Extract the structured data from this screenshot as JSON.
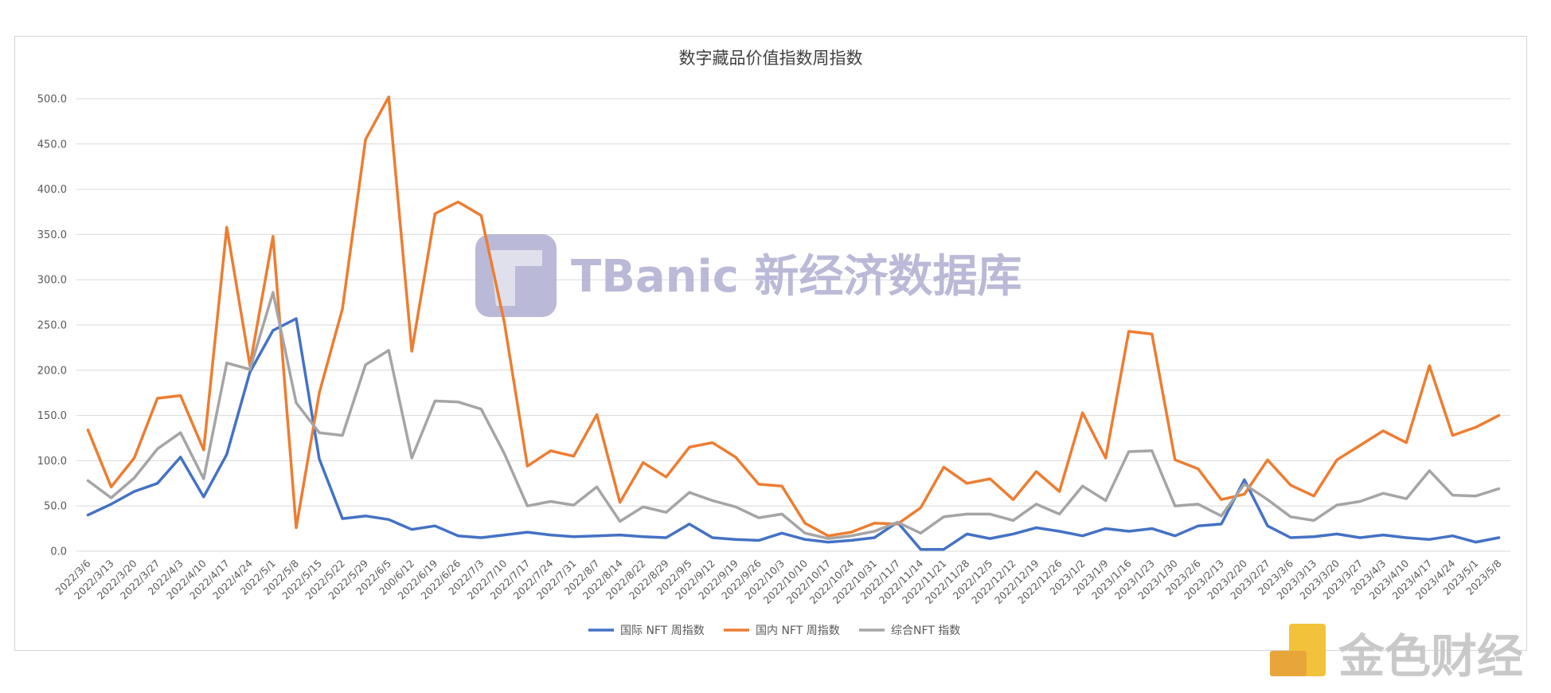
{
  "chart_data": {
    "type": "line",
    "title": "数字藏品价值指数周指数",
    "ylim": [
      0,
      500
    ],
    "yticks": [
      "0.0",
      "50.0",
      "100.0",
      "150.0",
      "200.0",
      "250.0",
      "300.0",
      "350.0",
      "400.0",
      "450.0",
      "500.0"
    ],
    "grid": true,
    "legend_position": "bottom",
    "categories": [
      "2022/3/6",
      "2022/3/13",
      "2022/3/20",
      "2022/3/27",
      "2022/4/3",
      "2022/4/10",
      "2022/4/17",
      "2022/4/24",
      "2022/5/1",
      "2022/5/8",
      "2022/5/15",
      "2022/5/22",
      "2022/5/29",
      "2022/6/5",
      "200/6/12",
      "2022/6/19",
      "2022/6/26",
      "2022/7/3",
      "2022/7/10",
      "2022/7/17",
      "2022/7/24",
      "2022/7/31",
      "2022/8/7",
      "2022/8/14",
      "2022/8/22",
      "2022/8/29",
      "2022/9/5",
      "2022/9/12",
      "2022/9/19",
      "2022/9/26",
      "2022/10/3",
      "2022/10/10",
      "2022/10/17",
      "2022/10/24",
      "2022/10/31",
      "2022/11/7",
      "2022/11/14",
      "2022/11/21",
      "2022/11/28",
      "2022/12/5",
      "2022/12/12",
      "2022/12/19",
      "2022/12/26",
      "2023/1/2",
      "2023/1/9",
      "2023/1/16",
      "2023/1/23",
      "2023/1/30",
      "2023/2/6",
      "2023/2/13",
      "2023/2/20",
      "2023/2/27",
      "2023/3/6",
      "2023/3/13",
      "2023/3/20",
      "2023/3/27",
      "2023/4/3",
      "2023/4/10",
      "2023/4/17",
      "2023/4/24",
      "2023/5/1",
      "2023/5/8"
    ],
    "series": [
      {
        "name": "国际 NFT 周指数",
        "color": "#4472c4",
        "values": [
          40,
          52,
          66,
          75,
          104,
          60,
          107,
          198,
          244,
          257,
          102,
          36,
          39,
          35,
          24,
          28,
          17,
          15,
          18,
          21,
          18,
          16,
          17,
          18,
          16,
          15,
          30,
          15,
          13,
          12,
          20,
          13,
          10,
          12,
          15,
          32,
          2,
          2,
          19,
          14,
          19,
          26,
          22,
          17,
          25,
          22,
          25,
          17,
          28,
          30,
          79,
          28,
          15,
          16,
          19,
          15,
          18,
          15,
          13,
          17,
          10,
          15
        ]
      },
      {
        "name": "国内 NFT 周指数",
        "color": "#ed7d31",
        "values": [
          134,
          71,
          103,
          169,
          172,
          112,
          358,
          205,
          348,
          26,
          175,
          268,
          455,
          502,
          221,
          373,
          386,
          371,
          253,
          94,
          111,
          105,
          151,
          54,
          98,
          82,
          115,
          120,
          104,
          74,
          72,
          31,
          17,
          21,
          31,
          30,
          48,
          93,
          75,
          80,
          57,
          88,
          66,
          153,
          103,
          243,
          240,
          101,
          91,
          57,
          63,
          101,
          73,
          61,
          101,
          117,
          133,
          120,
          205,
          128,
          137,
          150
        ]
      },
      {
        "name": "综合NFT 指数",
        "color": "#a5a5a5",
        "values": [
          78,
          59,
          81,
          113,
          131,
          80,
          208,
          201,
          286,
          164,
          131,
          128,
          206,
          222,
          103,
          166,
          165,
          157,
          108,
          50,
          55,
          51,
          71,
          33,
          49,
          43,
          65,
          56,
          49,
          37,
          41,
          20,
          14,
          17,
          22,
          32,
          20,
          38,
          41,
          41,
          34,
          52,
          41,
          72,
          56,
          110,
          111,
          50,
          52,
          39,
          74,
          57,
          38,
          34,
          51,
          55,
          64,
          58,
          89,
          62,
          61,
          69
        ]
      }
    ]
  },
  "watermark": {
    "text": "TBanic 新经济数据库",
    "color": "#b3b2d3"
  },
  "brand": {
    "text": "金色财经",
    "color": "#e8a63a"
  }
}
